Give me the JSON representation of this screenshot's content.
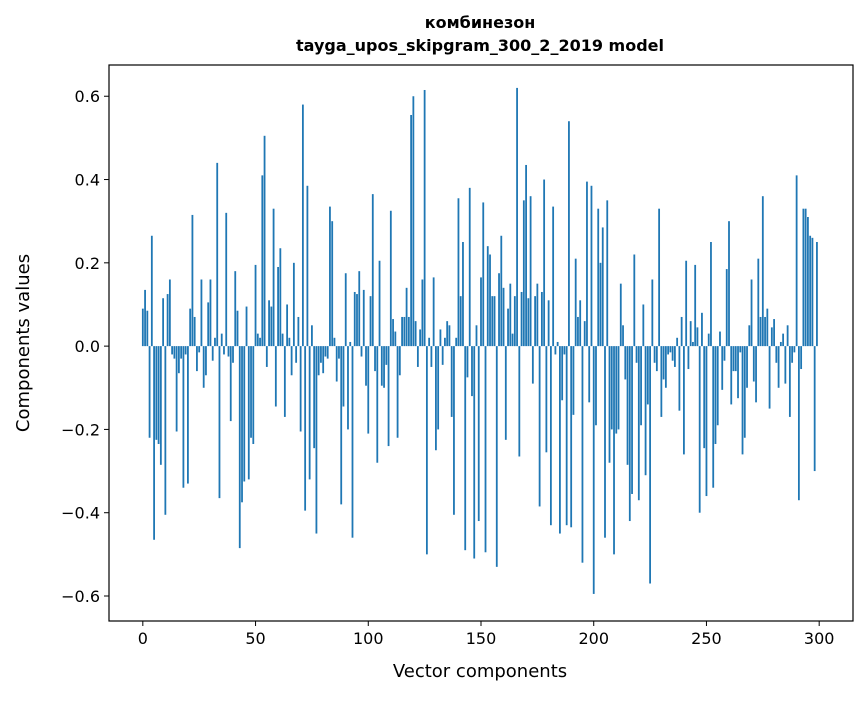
{
  "chart_data": {
    "type": "bar",
    "title": "комбинезон",
    "subtitle": "tayga_upos_skipgram_300_2_2019 model",
    "xlabel": "Vector components",
    "ylabel": "Components values",
    "xlim": [
      -15,
      315
    ],
    "ylim": [
      -0.66,
      0.675
    ],
    "xticks": [
      0,
      50,
      100,
      150,
      200,
      250,
      300
    ],
    "xtick_labels": [
      "0",
      "50",
      "100",
      "150",
      "200",
      "250",
      "300"
    ],
    "yticks": [
      -0.6,
      -0.4,
      -0.2,
      0.0,
      0.2,
      0.4,
      0.6
    ],
    "ytick_labels": [
      "−0.6",
      "−0.4",
      "−0.2",
      "0.0",
      "0.2",
      "0.4",
      "0.6"
    ],
    "grid": false,
    "bar_color": "#1f77b4",
    "values": [
      0.09,
      0.135,
      0.085,
      -0.22,
      0.265,
      -0.465,
      -0.225,
      -0.235,
      -0.285,
      0.115,
      -0.405,
      0.125,
      0.16,
      -0.02,
      -0.03,
      -0.205,
      -0.065,
      -0.03,
      -0.34,
      -0.02,
      -0.33,
      0.09,
      0.315,
      0.07,
      -0.06,
      -0.015,
      0.16,
      -0.1,
      -0.07,
      0.105,
      0.16,
      -0.035,
      0.02,
      0.44,
      -0.365,
      0.03,
      -0.02,
      0.32,
      -0.025,
      -0.18,
      -0.04,
      0.18,
      0.085,
      -0.485,
      -0.375,
      -0.325,
      0.095,
      -0.32,
      -0.22,
      -0.235,
      0.195,
      0.03,
      0.02,
      0.41,
      0.505,
      -0.05,
      0.11,
      0.095,
      0.33,
      -0.145,
      0.19,
      0.235,
      0.03,
      -0.17,
      0.1,
      0.02,
      -0.07,
      0.2,
      -0.04,
      0.07,
      -0.205,
      0.58,
      -0.395,
      0.385,
      -0.32,
      0.05,
      -0.245,
      -0.45,
      -0.07,
      -0.04,
      -0.065,
      -0.025,
      -0.03,
      0.335,
      0.3,
      0.02,
      -0.085,
      -0.03,
      -0.38,
      -0.145,
      0.175,
      -0.2,
      0.01,
      -0.46,
      0.13,
      0.125,
      0.18,
      -0.025,
      0.135,
      -0.095,
      -0.21,
      0.12,
      0.365,
      -0.06,
      -0.28,
      0.205,
      -0.095,
      -0.1,
      -0.045,
      -0.24,
      0.325,
      0.065,
      0.035,
      -0.22,
      -0.07,
      0.07,
      0.07,
      0.14,
      0.07,
      0.555,
      0.6,
      0.06,
      -0.05,
      0.04,
      0.16,
      0.615,
      -0.5,
      0.02,
      -0.05,
      0.165,
      -0.25,
      -0.2,
      0.04,
      -0.045,
      0.02,
      0.06,
      0.05,
      -0.17,
      -0.405,
      0.02,
      0.355,
      0.12,
      0.25,
      -0.49,
      -0.075,
      0.38,
      -0.12,
      -0.51,
      0.05,
      -0.42,
      0.165,
      0.345,
      -0.495,
      0.24,
      0.22,
      0.12,
      0.12,
      -0.53,
      0.175,
      0.265,
      0.14,
      -0.225,
      0.09,
      0.15,
      0.03,
      0.12,
      0.62,
      -0.265,
      0.13,
      0.35,
      0.435,
      0.115,
      0.36,
      -0.09,
      0.12,
      0.15,
      -0.385,
      0.13,
      0.4,
      -0.255,
      0.11,
      -0.43,
      0.335,
      -0.02,
      0.01,
      -0.45,
      -0.13,
      -0.02,
      -0.43,
      0.54,
      -0.435,
      -0.165,
      0.21,
      0.07,
      0.11,
      -0.52,
      0.06,
      0.395,
      -0.135,
      0.385,
      -0.595,
      -0.19,
      0.33,
      0.2,
      0.285,
      -0.46,
      0.35,
      -0.28,
      -0.2,
      -0.5,
      -0.21,
      -0.2,
      0.15,
      0.05,
      -0.08,
      -0.285,
      -0.42,
      -0.355,
      0.22,
      -0.04,
      -0.37,
      -0.19,
      0.1,
      -0.31,
      -0.14,
      -0.57,
      0.16,
      -0.04,
      -0.06,
      0.33,
      -0.17,
      -0.08,
      -0.1,
      -0.02,
      -0.015,
      -0.035,
      -0.05,
      0.02,
      -0.155,
      0.07,
      -0.26,
      0.205,
      -0.055,
      0.06,
      0.01,
      0.195,
      0.045,
      -0.4,
      0.08,
      -0.245,
      -0.36,
      0.03,
      0.25,
      -0.34,
      -0.235,
      -0.19,
      0.035,
      -0.105,
      -0.035,
      0.185,
      0.3,
      -0.14,
      -0.06,
      -0.06,
      -0.125,
      -0.015,
      -0.26,
      -0.22,
      -0.1,
      0.05,
      0.16,
      -0.085,
      -0.135,
      0.21,
      0.07,
      0.36,
      0.07,
      0.09,
      -0.15,
      0.045,
      0.065,
      -0.04,
      -0.1,
      0.01,
      0.03,
      -0.09,
      0.05,
      -0.17,
      -0.04,
      -0.015,
      0.41,
      -0.37,
      -0.055,
      0.33,
      0.33,
      0.31,
      0.265,
      0.26,
      -0.3,
      0.25
    ]
  }
}
